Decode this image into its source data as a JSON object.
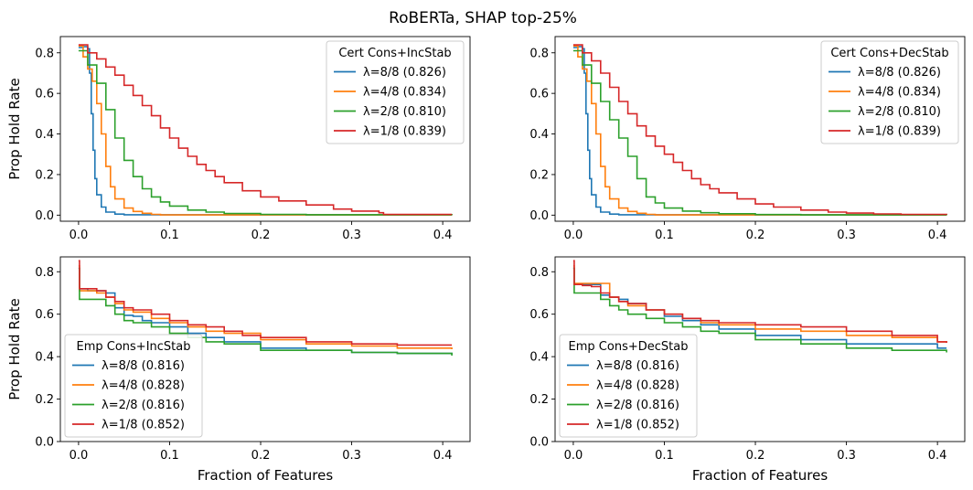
{
  "figure": {
    "title": "RoBERTa, SHAP top-25%"
  },
  "chart_data": [
    {
      "type": "line",
      "xlabel": "",
      "ylabel": "Prop Hold Rate",
      "xlim": [
        -0.02,
        0.43
      ],
      "ylim": [
        -0.03,
        0.88
      ],
      "xticks": [
        0.0,
        0.1,
        0.2,
        0.3,
        0.4
      ],
      "xticklabels": [
        "0.0",
        "0.1",
        "0.2",
        "0.3",
        "0.4"
      ],
      "yticks": [
        0.0,
        0.2,
        0.4,
        0.6,
        0.8
      ],
      "yticklabels": [
        "0.0",
        "0.2",
        "0.4",
        "0.6",
        "0.8"
      ],
      "legend": {
        "title": "Cert Cons+IncStab",
        "position": "top-right"
      },
      "series": [
        {
          "name": "λ=8/8 (0.826)",
          "color": "#1f77b4",
          "x": [
            0,
            0.005,
            0.01,
            0.012,
            0.014,
            0.016,
            0.018,
            0.02,
            0.025,
            0.03,
            0.04,
            0.05,
            0.41
          ],
          "y": [
            0.826,
            0.83,
            0.82,
            0.7,
            0.5,
            0.32,
            0.18,
            0.1,
            0.04,
            0.015,
            0.005,
            0.002,
            0.0
          ]
        },
        {
          "name": "λ=4/8 (0.834)",
          "color": "#ff7f0e",
          "x": [
            0,
            0.005,
            0.01,
            0.015,
            0.02,
            0.025,
            0.03,
            0.035,
            0.04,
            0.05,
            0.06,
            0.07,
            0.08,
            0.09,
            0.41
          ],
          "y": [
            0.834,
            0.78,
            0.72,
            0.66,
            0.55,
            0.4,
            0.24,
            0.14,
            0.08,
            0.035,
            0.018,
            0.009,
            0.004,
            0.001,
            0.0
          ]
        },
        {
          "name": "λ=2/8 (0.810)",
          "color": "#2ca02c",
          "x": [
            0,
            0.01,
            0.02,
            0.03,
            0.04,
            0.05,
            0.06,
            0.07,
            0.08,
            0.09,
            0.1,
            0.12,
            0.14,
            0.16,
            0.2,
            0.25,
            0.41
          ],
          "y": [
            0.81,
            0.74,
            0.65,
            0.52,
            0.38,
            0.27,
            0.19,
            0.13,
            0.09,
            0.065,
            0.045,
            0.025,
            0.015,
            0.008,
            0.004,
            0.002,
            0.0
          ]
        },
        {
          "name": "λ=1/8 (0.839)",
          "color": "#d62728",
          "x": [
            0,
            0.01,
            0.02,
            0.03,
            0.04,
            0.05,
            0.06,
            0.07,
            0.08,
            0.09,
            0.1,
            0.11,
            0.12,
            0.13,
            0.14,
            0.15,
            0.16,
            0.18,
            0.2,
            0.22,
            0.25,
            0.28,
            0.3,
            0.33,
            0.335,
            0.41
          ],
          "y": [
            0.839,
            0.8,
            0.77,
            0.73,
            0.69,
            0.64,
            0.59,
            0.54,
            0.49,
            0.43,
            0.38,
            0.33,
            0.29,
            0.25,
            0.22,
            0.19,
            0.16,
            0.12,
            0.09,
            0.07,
            0.05,
            0.03,
            0.02,
            0.012,
            0.004,
            0.004
          ]
        }
      ]
    },
    {
      "type": "line",
      "xlabel": "",
      "ylabel": "",
      "xlim": [
        -0.02,
        0.43
      ],
      "ylim": [
        -0.03,
        0.88
      ],
      "xticks": [
        0.0,
        0.1,
        0.2,
        0.3,
        0.4
      ],
      "xticklabels": [
        "0.0",
        "0.1",
        "0.2",
        "0.3",
        "0.4"
      ],
      "yticks": [
        0.0,
        0.2,
        0.4,
        0.6,
        0.8
      ],
      "yticklabels": [
        "0.0",
        "0.2",
        "0.4",
        "0.6",
        "0.8"
      ],
      "legend": {
        "title": "Cert Cons+DecStab",
        "position": "top-right"
      },
      "series": [
        {
          "name": "λ=8/8 (0.826)",
          "color": "#1f77b4",
          "x": [
            0,
            0.005,
            0.01,
            0.012,
            0.014,
            0.016,
            0.018,
            0.02,
            0.025,
            0.03,
            0.04,
            0.05,
            0.41
          ],
          "y": [
            0.826,
            0.83,
            0.82,
            0.7,
            0.5,
            0.32,
            0.18,
            0.1,
            0.04,
            0.015,
            0.005,
            0.002,
            0.0
          ]
        },
        {
          "name": "λ=4/8 (0.834)",
          "color": "#ff7f0e",
          "x": [
            0,
            0.005,
            0.01,
            0.015,
            0.02,
            0.025,
            0.03,
            0.035,
            0.04,
            0.05,
            0.06,
            0.07,
            0.08,
            0.09,
            0.41
          ],
          "y": [
            0.834,
            0.78,
            0.72,
            0.66,
            0.55,
            0.4,
            0.24,
            0.14,
            0.08,
            0.035,
            0.018,
            0.009,
            0.004,
            0.001,
            0.0
          ]
        },
        {
          "name": "λ=2/8 (0.810)",
          "color": "#2ca02c",
          "x": [
            0,
            0.01,
            0.02,
            0.03,
            0.04,
            0.05,
            0.06,
            0.07,
            0.08,
            0.09,
            0.1,
            0.12,
            0.14,
            0.16,
            0.2,
            0.25,
            0.41
          ],
          "y": [
            0.81,
            0.74,
            0.65,
            0.56,
            0.47,
            0.38,
            0.29,
            0.18,
            0.09,
            0.06,
            0.035,
            0.02,
            0.012,
            0.007,
            0.003,
            0.001,
            0.0
          ]
        },
        {
          "name": "λ=1/8 (0.839)",
          "color": "#d62728",
          "x": [
            0,
            0.01,
            0.02,
            0.03,
            0.04,
            0.05,
            0.06,
            0.07,
            0.08,
            0.09,
            0.1,
            0.11,
            0.12,
            0.13,
            0.14,
            0.15,
            0.16,
            0.18,
            0.2,
            0.22,
            0.25,
            0.28,
            0.3,
            0.33,
            0.36,
            0.41
          ],
          "y": [
            0.839,
            0.8,
            0.76,
            0.7,
            0.63,
            0.56,
            0.5,
            0.44,
            0.39,
            0.34,
            0.3,
            0.26,
            0.22,
            0.18,
            0.15,
            0.13,
            0.11,
            0.08,
            0.055,
            0.04,
            0.025,
            0.015,
            0.01,
            0.006,
            0.004,
            0.003
          ]
        }
      ]
    },
    {
      "type": "line",
      "xlabel": "Fraction of Features",
      "ylabel": "Prop Hold Rate",
      "xlim": [
        -0.02,
        0.43
      ],
      "ylim": [
        0.0,
        0.87
      ],
      "xticks": [
        0.0,
        0.1,
        0.2,
        0.3,
        0.4
      ],
      "xticklabels": [
        "0.0",
        "0.1",
        "0.2",
        "0.3",
        "0.4"
      ],
      "yticks": [
        0.0,
        0.2,
        0.4,
        0.6,
        0.8
      ],
      "yticklabels": [
        "0.0",
        "0.2",
        "0.4",
        "0.6",
        "0.8"
      ],
      "legend": {
        "title": "Emp Cons+IncStab",
        "position": "lower-left"
      },
      "series": [
        {
          "name": "λ=8/8 (0.816)",
          "color": "#1f77b4",
          "x": [
            0,
            0.001,
            0.01,
            0.02,
            0.03,
            0.04,
            0.05,
            0.06,
            0.07,
            0.08,
            0.1,
            0.12,
            0.14,
            0.16,
            0.2,
            0.25,
            0.3,
            0.35,
            0.41
          ],
          "y": [
            0.816,
            0.72,
            0.71,
            0.71,
            0.7,
            0.63,
            0.595,
            0.59,
            0.57,
            0.56,
            0.54,
            0.51,
            0.49,
            0.47,
            0.44,
            0.43,
            0.42,
            0.415,
            0.41
          ]
        },
        {
          "name": "λ=4/8 (0.828)",
          "color": "#ff7f0e",
          "x": [
            0,
            0.001,
            0.01,
            0.02,
            0.03,
            0.04,
            0.05,
            0.06,
            0.08,
            0.1,
            0.12,
            0.14,
            0.16,
            0.2,
            0.25,
            0.3,
            0.35,
            0.41
          ],
          "y": [
            0.828,
            0.71,
            0.71,
            0.7,
            0.68,
            0.65,
            0.62,
            0.61,
            0.58,
            0.56,
            0.54,
            0.52,
            0.51,
            0.48,
            0.46,
            0.45,
            0.44,
            0.435
          ]
        },
        {
          "name": "λ=2/8 (0.816)",
          "color": "#2ca02c",
          "x": [
            0,
            0.001,
            0.02,
            0.03,
            0.04,
            0.05,
            0.06,
            0.08,
            0.1,
            0.12,
            0.14,
            0.16,
            0.2,
            0.25,
            0.3,
            0.35,
            0.41
          ],
          "y": [
            0.816,
            0.67,
            0.67,
            0.64,
            0.6,
            0.57,
            0.56,
            0.54,
            0.51,
            0.49,
            0.47,
            0.46,
            0.43,
            0.43,
            0.42,
            0.415,
            0.405
          ]
        },
        {
          "name": "λ=1/8 (0.852)",
          "color": "#d62728",
          "x": [
            0,
            0.001,
            0.01,
            0.02,
            0.03,
            0.04,
            0.05,
            0.06,
            0.08,
            0.1,
            0.12,
            0.14,
            0.16,
            0.18,
            0.2,
            0.25,
            0.3,
            0.35,
            0.41
          ],
          "y": [
            0.852,
            0.72,
            0.72,
            0.71,
            0.68,
            0.66,
            0.63,
            0.62,
            0.6,
            0.57,
            0.55,
            0.54,
            0.52,
            0.5,
            0.49,
            0.47,
            0.46,
            0.455,
            0.455
          ]
        }
      ]
    },
    {
      "type": "line",
      "xlabel": "Fraction of Features",
      "ylabel": "",
      "xlim": [
        -0.02,
        0.43
      ],
      "ylim": [
        0.0,
        0.87
      ],
      "xticks": [
        0.0,
        0.1,
        0.2,
        0.3,
        0.4
      ],
      "xticklabels": [
        "0.0",
        "0.1",
        "0.2",
        "0.3",
        "0.4"
      ],
      "yticks": [
        0.0,
        0.2,
        0.4,
        0.6,
        0.8
      ],
      "yticklabels": [
        "0.0",
        "0.2",
        "0.4",
        "0.6",
        "0.8"
      ],
      "legend": {
        "title": "Emp Cons+DecStab",
        "position": "lower-left"
      },
      "series": [
        {
          "name": "λ=8/8 (0.816)",
          "color": "#1f77b4",
          "x": [
            0,
            0.001,
            0.02,
            0.03,
            0.04,
            0.05,
            0.06,
            0.08,
            0.1,
            0.12,
            0.14,
            0.16,
            0.2,
            0.25,
            0.3,
            0.35,
            0.4,
            0.41
          ],
          "y": [
            0.816,
            0.74,
            0.74,
            0.69,
            0.68,
            0.67,
            0.65,
            0.62,
            0.59,
            0.57,
            0.55,
            0.53,
            0.5,
            0.48,
            0.46,
            0.46,
            0.44,
            0.44
          ]
        },
        {
          "name": "λ=4/8 (0.828)",
          "color": "#ff7f0e",
          "x": [
            0,
            0.001,
            0.03,
            0.04,
            0.05,
            0.06,
            0.08,
            0.1,
            0.12,
            0.14,
            0.16,
            0.2,
            0.25,
            0.3,
            0.35,
            0.4,
            0.41
          ],
          "y": [
            0.828,
            0.745,
            0.745,
            0.68,
            0.66,
            0.64,
            0.62,
            0.6,
            0.58,
            0.56,
            0.55,
            0.53,
            0.52,
            0.5,
            0.49,
            0.47,
            0.465
          ]
        },
        {
          "name": "λ=2/8 (0.816)",
          "color": "#2ca02c",
          "x": [
            0,
            0.001,
            0.02,
            0.03,
            0.04,
            0.05,
            0.06,
            0.08,
            0.1,
            0.12,
            0.14,
            0.16,
            0.2,
            0.25,
            0.3,
            0.35,
            0.41
          ],
          "y": [
            0.816,
            0.7,
            0.7,
            0.67,
            0.64,
            0.62,
            0.6,
            0.58,
            0.56,
            0.54,
            0.52,
            0.51,
            0.48,
            0.46,
            0.44,
            0.43,
            0.42
          ]
        },
        {
          "name": "λ=1/8 (0.852)",
          "color": "#d62728",
          "x": [
            0,
            0.001,
            0.01,
            0.02,
            0.03,
            0.04,
            0.05,
            0.06,
            0.08,
            0.1,
            0.12,
            0.14,
            0.16,
            0.2,
            0.25,
            0.3,
            0.35,
            0.4,
            0.41
          ],
          "y": [
            0.852,
            0.74,
            0.735,
            0.73,
            0.7,
            0.68,
            0.66,
            0.65,
            0.62,
            0.6,
            0.58,
            0.57,
            0.56,
            0.55,
            0.54,
            0.52,
            0.5,
            0.47,
            0.465
          ]
        }
      ]
    }
  ]
}
